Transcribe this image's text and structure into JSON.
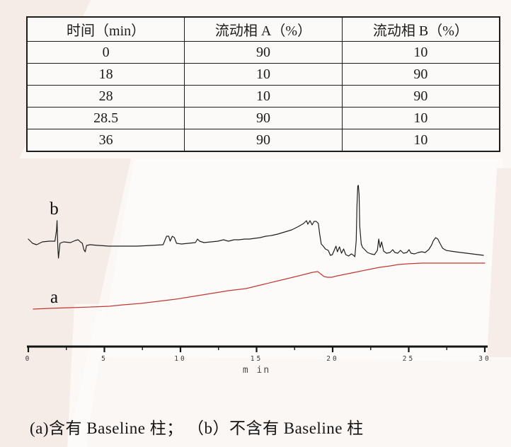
{
  "table": {
    "headers": [
      "时间（min）",
      "流动相 A（%）",
      "流动相 B（%）"
    ],
    "rows": [
      [
        "0",
        "90",
        "10"
      ],
      [
        "18",
        "10",
        "90"
      ],
      [
        "28",
        "10",
        "90"
      ],
      [
        "28.5",
        "90",
        "10"
      ],
      [
        "36",
        "90",
        "10"
      ]
    ]
  },
  "chart_data": {
    "type": "line",
    "title": "",
    "xlabel": "min",
    "xlabel_display": "m in",
    "ylabel": "",
    "xlim": [
      0,
      30
    ],
    "grid": false,
    "x_ticks": [
      0,
      5,
      10,
      15,
      20,
      25,
      30
    ],
    "x_tick_labels": [
      "0",
      "5",
      "10",
      "15",
      "20",
      "25",
      "30"
    ],
    "x_minor_ticks": [
      2.5,
      7.5,
      12.5,
      17.5,
      22.5,
      27.5
    ],
    "series": [
      {
        "name": "b",
        "description": "不含有 Baseline 柱",
        "color": "#1f1f1f",
        "points": [
          [
            0,
            102
          ],
          [
            0.28,
            96
          ],
          [
            0.55,
            94
          ],
          [
            0.92,
            98
          ],
          [
            1.38,
            99
          ],
          [
            1.75,
            99
          ],
          [
            1.85,
            114
          ],
          [
            1.89,
            128
          ],
          [
            1.94,
            90
          ],
          [
            1.98,
            75
          ],
          [
            2.08,
            96
          ],
          [
            2.31,
            98
          ],
          [
            2.77,
            97
          ],
          [
            3.09,
            100
          ],
          [
            3.28,
            101
          ],
          [
            3.42,
            98
          ],
          [
            3.55,
            96
          ],
          [
            3.65,
            87
          ],
          [
            3.74,
            84
          ],
          [
            3.83,
            93
          ],
          [
            4.06,
            94
          ],
          [
            4.62,
            93
          ],
          [
            5.31,
            92
          ],
          [
            6.23,
            92
          ],
          [
            7.15,
            92
          ],
          [
            8.08,
            93
          ],
          [
            8.86,
            94
          ],
          [
            9.09,
            106
          ],
          [
            9.23,
            106
          ],
          [
            9.32,
            99
          ],
          [
            9.46,
            106
          ],
          [
            9.6,
            104
          ],
          [
            9.74,
            96
          ],
          [
            10.06,
            95
          ],
          [
            10.52,
            96
          ],
          [
            10.98,
            97
          ],
          [
            11.12,
            102
          ],
          [
            11.26,
            99
          ],
          [
            11.54,
            97
          ],
          [
            12,
            98
          ],
          [
            12.46,
            99
          ],
          [
            12.83,
            101
          ],
          [
            13.15,
            99
          ],
          [
            13.52,
            101
          ],
          [
            13.85,
            101
          ],
          [
            14.22,
            102
          ],
          [
            14.54,
            102
          ],
          [
            14.86,
            103
          ],
          [
            15.23,
            104
          ],
          [
            15.6,
            106
          ],
          [
            15.97,
            107
          ],
          [
            16.38,
            109
          ],
          [
            16.85,
            112
          ],
          [
            17.31,
            115
          ],
          [
            17.77,
            120
          ],
          [
            18.09,
            124
          ],
          [
            18.28,
            128
          ],
          [
            18.37,
            123
          ],
          [
            18.51,
            128
          ],
          [
            18.65,
            122
          ],
          [
            18.78,
            127
          ],
          [
            18.92,
            127
          ],
          [
            19.06,
            124
          ],
          [
            19.15,
            109
          ],
          [
            19.25,
            95
          ],
          [
            19.38,
            92
          ],
          [
            19.52,
            88
          ],
          [
            19.71,
            86
          ],
          [
            19.85,
            79
          ],
          [
            19.98,
            80
          ],
          [
            20.12,
            87
          ],
          [
            20.22,
            92
          ],
          [
            20.31,
            84
          ],
          [
            20.45,
            91
          ],
          [
            20.58,
            82
          ],
          [
            20.72,
            88
          ],
          [
            20.86,
            80
          ],
          [
            21.05,
            78
          ],
          [
            21.23,
            81
          ],
          [
            21.37,
            79
          ],
          [
            21.46,
            77
          ],
          [
            21.55,
            100
          ],
          [
            21.6,
            150
          ],
          [
            21.65,
            177
          ],
          [
            21.69,
            178
          ],
          [
            21.74,
            165
          ],
          [
            21.78,
            120
          ],
          [
            21.88,
            95
          ],
          [
            21.97,
            90
          ],
          [
            22.11,
            87
          ],
          [
            22.29,
            83
          ],
          [
            22.52,
            81
          ],
          [
            22.75,
            80
          ],
          [
            22.94,
            86
          ],
          [
            23.03,
            102
          ],
          [
            23.12,
            90
          ],
          [
            23.22,
            98
          ],
          [
            23.35,
            85
          ],
          [
            23.54,
            82
          ],
          [
            23.77,
            83
          ],
          [
            23.95,
            87
          ],
          [
            24.09,
            83
          ],
          [
            24.28,
            82
          ],
          [
            24.46,
            86
          ],
          [
            24.65,
            82
          ],
          [
            24.88,
            83
          ],
          [
            25.02,
            87
          ],
          [
            25.15,
            82
          ],
          [
            25.38,
            81
          ],
          [
            25.62,
            83
          ],
          [
            25.85,
            84
          ],
          [
            26.08,
            83
          ],
          [
            26.31,
            87
          ],
          [
            26.49,
            93
          ],
          [
            26.63,
            100
          ],
          [
            26.77,
            104
          ],
          [
            26.91,
            102
          ],
          [
            27.05,
            96
          ],
          [
            27.23,
            89
          ],
          [
            27.46,
            86
          ],
          [
            27.74,
            85
          ],
          [
            28.06,
            84
          ],
          [
            28.43,
            83
          ],
          [
            28.8,
            82
          ],
          [
            29.17,
            81
          ],
          [
            29.54,
            80
          ],
          [
            29.91,
            79
          ]
        ]
      },
      {
        "name": "a",
        "description": "含有 Baseline 柱",
        "color": "#c0392f",
        "points": [
          [
            0.32,
            3
          ],
          [
            1.38,
            4
          ],
          [
            2.77,
            5
          ],
          [
            4.15,
            6
          ],
          [
            5.31,
            7
          ],
          [
            6.23,
            9
          ],
          [
            7.38,
            11
          ],
          [
            8.54,
            14
          ],
          [
            9.69,
            17
          ],
          [
            10.85,
            21
          ],
          [
            12,
            25
          ],
          [
            13.15,
            29
          ],
          [
            14.31,
            32
          ],
          [
            15.46,
            38
          ],
          [
            16.62,
            44
          ],
          [
            17.77,
            50
          ],
          [
            18.69,
            55
          ],
          [
            19.02,
            56
          ],
          [
            19.2,
            53
          ],
          [
            19.43,
            49
          ],
          [
            19.66,
            48
          ],
          [
            19.94,
            48
          ],
          [
            20.31,
            50
          ],
          [
            21,
            53
          ],
          [
            21.69,
            56
          ],
          [
            22.38,
            59
          ],
          [
            23.08,
            62
          ],
          [
            23.77,
            64
          ],
          [
            24.32,
            66
          ],
          [
            24.92,
            67
          ],
          [
            25.85,
            68
          ],
          [
            27,
            68
          ],
          [
            28.15,
            68
          ],
          [
            29.31,
            68
          ],
          [
            30,
            68
          ]
        ]
      }
    ],
    "annotations": [
      {
        "text": "b",
        "t": 1.7,
        "u": 137
      },
      {
        "text": "a",
        "t": 1.7,
        "u": 12
      }
    ],
    "y_note": "signal in arbitrary units, no y-axis shown"
  },
  "caption": {
    "text": "(a)含有 Baseline 柱； （b）不含有 Baseline 柱"
  },
  "colors": {
    "trace_a_red": "#c0392f",
    "trace_b_black": "#1f1f1f",
    "table_border": "#1c1c1c",
    "watermark_pink": "#f5ebe7",
    "page_background": "#fbf7f4"
  }
}
